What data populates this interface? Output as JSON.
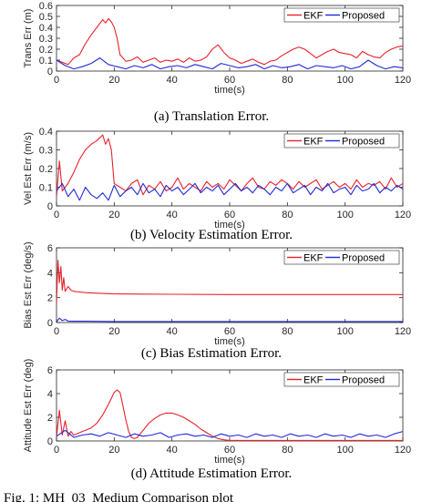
{
  "figure_caption_partial": "Fig. 1: MH_03_Medium Comparison plot",
  "colors": {
    "ekf": "#e8222b",
    "proposed": "#1f2bd8",
    "axis": "#262626"
  },
  "chart_data": [
    {
      "type": "line",
      "caption": "(a) Translation Error.",
      "xlabel": "time(s)",
      "ylabel": "Trans Err (m)",
      "xlim": [
        0,
        120
      ],
      "ylim": [
        0,
        0.6
      ],
      "xticks": [
        0,
        20,
        40,
        60,
        80,
        100,
        120
      ],
      "yticks": [
        "0",
        "0.1",
        "0.2",
        "0.3",
        "0.4",
        "0.5",
        "0.6"
      ],
      "legend_position": "top-right",
      "series": [
        {
          "name": "EKF",
          "color": "#e8222b",
          "x": [
            0,
            2,
            4,
            6,
            8,
            10,
            12,
            14,
            16,
            17,
            18,
            19,
            20,
            21,
            22,
            24,
            26,
            28,
            30,
            32,
            34,
            36,
            38,
            40,
            42,
            44,
            46,
            48,
            50,
            52,
            54,
            56,
            58,
            60,
            62,
            64,
            66,
            68,
            70,
            72,
            74,
            76,
            78,
            80,
            82,
            84,
            86,
            88,
            90,
            92,
            94,
            96,
            98,
            100,
            102,
            104,
            106,
            108,
            110,
            112,
            114,
            116,
            118,
            120
          ],
          "y": [
            0.1,
            0.08,
            0.06,
            0.12,
            0.15,
            0.25,
            0.33,
            0.4,
            0.47,
            0.44,
            0.48,
            0.45,
            0.4,
            0.3,
            0.15,
            0.09,
            0.1,
            0.13,
            0.08,
            0.1,
            0.12,
            0.08,
            0.1,
            0.09,
            0.11,
            0.08,
            0.12,
            0.09,
            0.1,
            0.13,
            0.2,
            0.24,
            0.17,
            0.12,
            0.1,
            0.07,
            0.09,
            0.11,
            0.08,
            0.06,
            0.09,
            0.1,
            0.14,
            0.17,
            0.2,
            0.22,
            0.2,
            0.16,
            0.12,
            0.15,
            0.18,
            0.2,
            0.17,
            0.16,
            0.15,
            0.12,
            0.18,
            0.15,
            0.13,
            0.12,
            0.17,
            0.2,
            0.22,
            0.23
          ]
        },
        {
          "name": "Proposed",
          "color": "#1f2bd8",
          "x": [
            0,
            3,
            6,
            9,
            12,
            15,
            18,
            21,
            24,
            27,
            30,
            33,
            36,
            39,
            42,
            45,
            48,
            51,
            54,
            57,
            60,
            63,
            66,
            69,
            72,
            75,
            78,
            81,
            84,
            87,
            90,
            93,
            96,
            99,
            102,
            105,
            108,
            111,
            114,
            117,
            120
          ],
          "y": [
            0.1,
            0.05,
            0.02,
            0.04,
            0.07,
            0.12,
            0.06,
            0.04,
            0.02,
            0.05,
            0.03,
            0.06,
            0.02,
            0.04,
            0.05,
            0.03,
            0.06,
            0.04,
            0.02,
            0.07,
            0.05,
            0.03,
            0.04,
            0.06,
            0.02,
            0.05,
            0.03,
            0.04,
            0.06,
            0.02,
            0.05,
            0.04,
            0.03,
            0.05,
            0.02,
            0.04,
            0.1,
            0.05,
            0.02,
            0.04,
            0.03
          ]
        }
      ]
    },
    {
      "type": "line",
      "caption": "(b) Velocity Estimation Error.",
      "xlabel": "time(s)",
      "ylabel": "Vel Est Err (m/s)",
      "xlim": [
        0,
        120
      ],
      "ylim": [
        0,
        0.4
      ],
      "xticks": [
        0,
        20,
        40,
        60,
        80,
        100,
        120
      ],
      "yticks": [
        "0",
        "0.1",
        "0.2",
        "0.3",
        "0.4"
      ],
      "legend_position": "top-right",
      "series": [
        {
          "name": "EKF",
          "color": "#e8222b",
          "x": [
            0,
            1,
            2,
            4,
            6,
            8,
            10,
            12,
            14,
            16,
            17,
            18,
            19,
            20,
            22,
            24,
            26,
            28,
            30,
            32,
            34,
            36,
            38,
            40,
            42,
            44,
            46,
            48,
            50,
            52,
            54,
            56,
            58,
            60,
            62,
            64,
            66,
            68,
            70,
            72,
            74,
            76,
            78,
            80,
            82,
            84,
            86,
            88,
            90,
            92,
            94,
            96,
            98,
            100,
            102,
            104,
            106,
            108,
            110,
            112,
            114,
            116,
            118,
            120
          ],
          "y": [
            0.05,
            0.24,
            0.08,
            0.12,
            0.18,
            0.25,
            0.3,
            0.33,
            0.35,
            0.38,
            0.33,
            0.36,
            0.3,
            0.12,
            0.1,
            0.08,
            0.12,
            0.14,
            0.06,
            0.11,
            0.09,
            0.13,
            0.08,
            0.1,
            0.15,
            0.09,
            0.12,
            0.1,
            0.08,
            0.13,
            0.1,
            0.12,
            0.09,
            0.14,
            0.11,
            0.08,
            0.12,
            0.15,
            0.1,
            0.09,
            0.13,
            0.11,
            0.14,
            0.12,
            0.09,
            0.13,
            0.1,
            0.12,
            0.14,
            0.09,
            0.11,
            0.13,
            0.1,
            0.12,
            0.09,
            0.14,
            0.1,
            0.12,
            0.11,
            0.13,
            0.09,
            0.15,
            0.1,
            0.12
          ]
        },
        {
          "name": "Proposed",
          "color": "#1f2bd8",
          "x": [
            0,
            2,
            4,
            6,
            8,
            10,
            12,
            14,
            16,
            18,
            20,
            22,
            24,
            26,
            28,
            30,
            32,
            34,
            36,
            38,
            40,
            42,
            44,
            46,
            48,
            50,
            52,
            54,
            56,
            58,
            60,
            62,
            64,
            66,
            68,
            70,
            72,
            74,
            76,
            78,
            80,
            82,
            84,
            86,
            88,
            90,
            92,
            94,
            96,
            98,
            100,
            102,
            104,
            106,
            108,
            110,
            112,
            114,
            116,
            118,
            120
          ],
          "y": [
            0.08,
            0.12,
            0.05,
            0.09,
            0.03,
            0.1,
            0.06,
            0.04,
            0.07,
            0.03,
            0.11,
            0.05,
            0.08,
            0.1,
            0.06,
            0.12,
            0.07,
            0.09,
            0.05,
            0.11,
            0.08,
            0.1,
            0.06,
            0.09,
            0.12,
            0.07,
            0.1,
            0.08,
            0.11,
            0.06,
            0.09,
            0.12,
            0.08,
            0.1,
            0.07,
            0.11,
            0.09,
            0.06,
            0.1,
            0.08,
            0.12,
            0.07,
            0.09,
            0.11,
            0.06,
            0.1,
            0.08,
            0.12,
            0.07,
            0.09,
            0.1,
            0.06,
            0.11,
            0.08,
            0.09,
            0.12,
            0.07,
            0.1,
            0.08,
            0.11,
            0.09
          ]
        }
      ]
    },
    {
      "type": "line",
      "caption": "(c) Bias Estimation Error.",
      "xlabel": "time(s)",
      "ylabel": "Bias Est Err (deg/s)",
      "xlim": [
        0,
        120
      ],
      "ylim": [
        0,
        6
      ],
      "xticks": [
        0,
        20,
        40,
        60,
        80,
        100,
        120
      ],
      "yticks": [
        "0",
        "2",
        "4",
        "6"
      ],
      "legend_position": "top-right",
      "series": [
        {
          "name": "EKF",
          "color": "#e8222b",
          "x": [
            0,
            0.5,
            1,
            1.5,
            2,
            2.5,
            3,
            4,
            5,
            6,
            8,
            10,
            15,
            20,
            30,
            40,
            60,
            80,
            100,
            120
          ],
          "y": [
            1.5,
            5.0,
            3.2,
            4.5,
            2.6,
            3.6,
            2.5,
            2.9,
            2.6,
            2.5,
            2.45,
            2.4,
            2.35,
            2.3,
            2.28,
            2.27,
            2.25,
            2.25,
            2.25,
            2.25
          ]
        },
        {
          "name": "Proposed",
          "color": "#1f2bd8",
          "x": [
            0,
            1,
            2,
            3,
            4,
            6,
            10,
            20,
            40,
            60,
            80,
            100,
            120
          ],
          "y": [
            0.05,
            0.35,
            0.15,
            0.25,
            0.12,
            0.1,
            0.1,
            0.08,
            0.08,
            0.08,
            0.08,
            0.08,
            0.08
          ]
        }
      ]
    },
    {
      "type": "line",
      "caption": "(d) Attitude Estimation Error.",
      "xlabel": "time(s)",
      "ylabel": "Attitude Est Err (deg)",
      "xlim": [
        0,
        120
      ],
      "ylim": [
        0,
        6
      ],
      "xticks": [
        0,
        20,
        40,
        60,
        80,
        100,
        120
      ],
      "yticks": [
        "0",
        "2",
        "4",
        "6"
      ],
      "legend_position": "top-right",
      "series": [
        {
          "name": "EKF",
          "color": "#e8222b",
          "x": [
            0,
            1,
            2,
            3,
            4,
            5,
            6,
            8,
            10,
            12,
            14,
            16,
            18,
            20,
            21,
            22,
            23,
            24,
            25,
            26,
            27,
            28,
            30,
            32,
            34,
            36,
            38,
            40,
            42,
            44,
            46,
            48,
            50,
            52,
            54,
            56,
            58,
            60,
            70,
            80,
            90,
            100,
            110,
            120
          ],
          "y": [
            0.3,
            2.6,
            0.5,
            1.7,
            0.4,
            0.8,
            0.5,
            0.7,
            0.9,
            1.1,
            1.5,
            2.2,
            3.1,
            4.1,
            4.3,
            4.1,
            3.0,
            1.8,
            0.8,
            0.3,
            0.2,
            0.3,
            0.9,
            1.5,
            1.9,
            2.2,
            2.35,
            2.35,
            2.2,
            2.0,
            1.7,
            1.4,
            1.0,
            0.7,
            0.4,
            0.2,
            0.1,
            0.05,
            0.05,
            0.05,
            0.05,
            0.05,
            0.05,
            0.05
          ]
        },
        {
          "name": "Proposed",
          "color": "#1f2bd8",
          "x": [
            0,
            3,
            6,
            9,
            12,
            15,
            18,
            21,
            24,
            27,
            30,
            33,
            36,
            39,
            42,
            45,
            48,
            51,
            54,
            57,
            60,
            63,
            66,
            69,
            72,
            75,
            78,
            81,
            84,
            87,
            90,
            93,
            96,
            99,
            102,
            105,
            108,
            111,
            114,
            117,
            120
          ],
          "y": [
            0.4,
            0.9,
            0.3,
            0.5,
            0.6,
            0.4,
            0.7,
            0.5,
            0.3,
            0.6,
            0.4,
            0.5,
            0.7,
            0.3,
            0.5,
            0.6,
            0.4,
            0.5,
            0.3,
            0.6,
            0.4,
            0.5,
            0.3,
            0.6,
            0.4,
            0.5,
            0.3,
            0.6,
            0.4,
            0.5,
            0.3,
            0.6,
            0.4,
            0.5,
            0.3,
            0.6,
            0.4,
            0.5,
            0.3,
            0.6,
            0.8
          ]
        }
      ]
    }
  ]
}
